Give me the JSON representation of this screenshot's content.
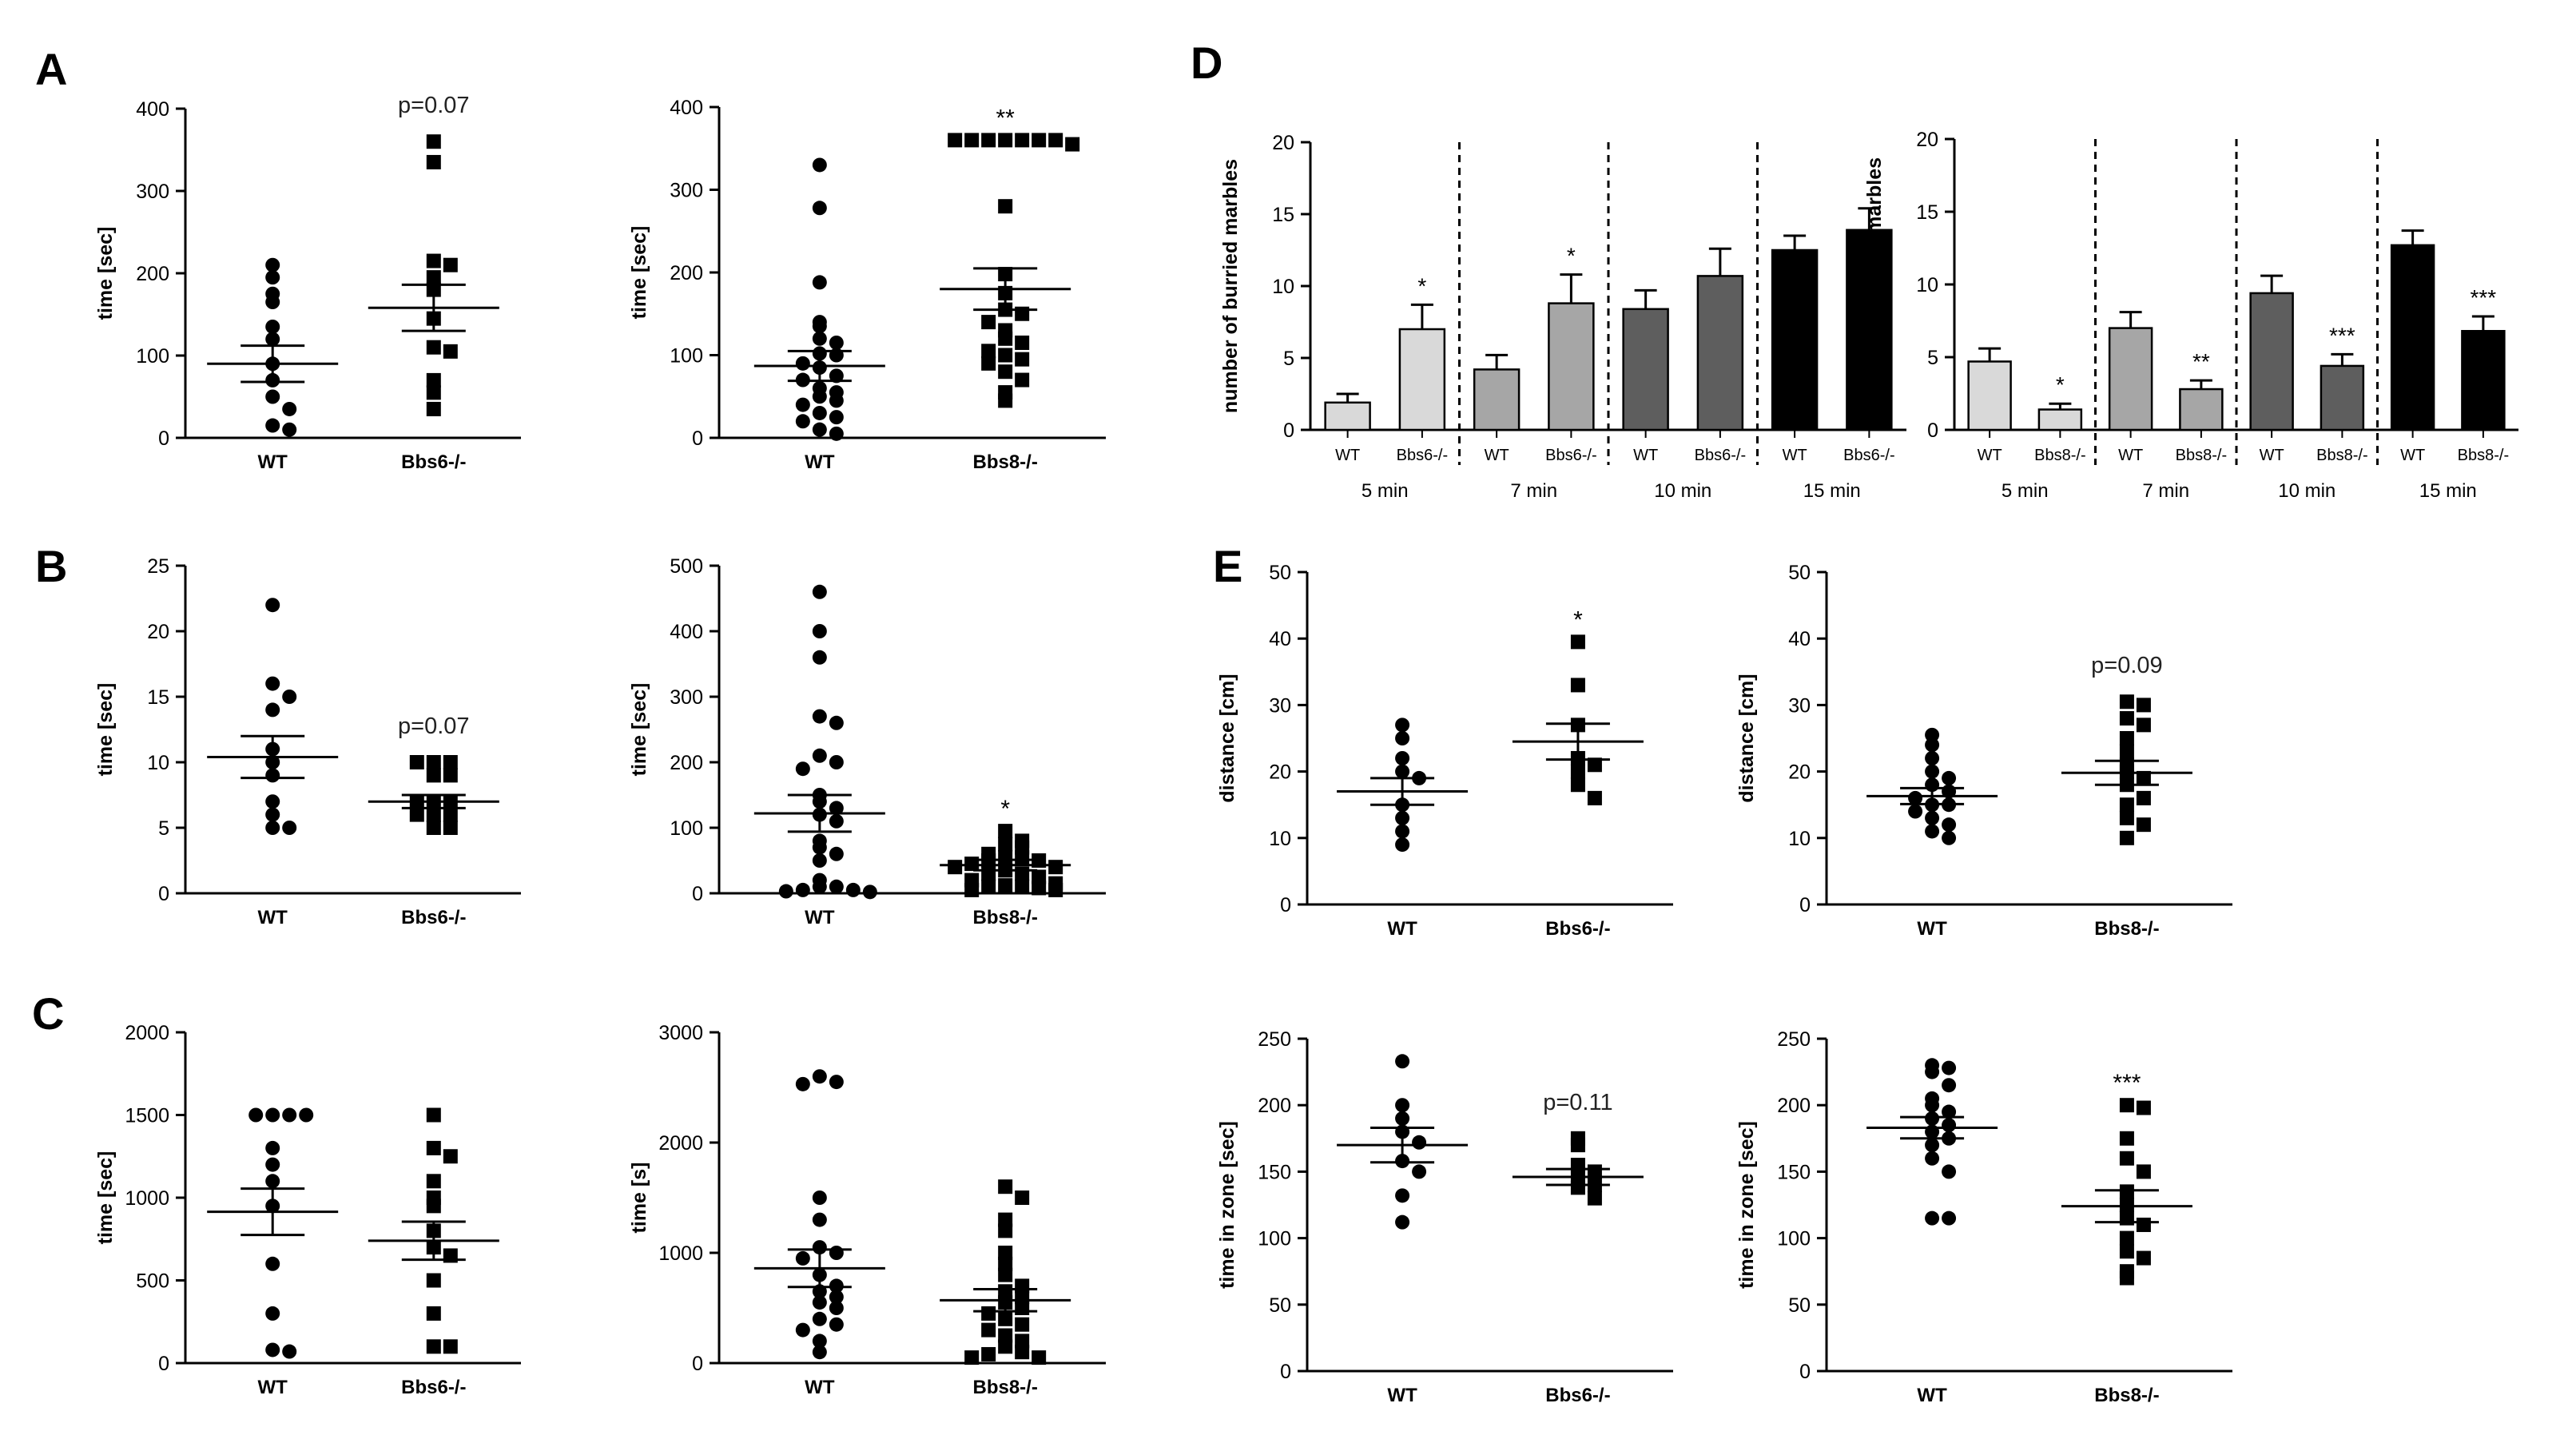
{
  "panel_letters": [
    "A",
    "B",
    "C",
    "D",
    "E"
  ],
  "chart_data": [
    {
      "id": "A1",
      "type": "scatter",
      "ylabel": "time [sec]",
      "ylim": [
        0,
        400
      ],
      "yticks": [
        0,
        100,
        200,
        300,
        400
      ],
      "categories": [
        "WT",
        "Bbs6-/-"
      ],
      "annotation": "p=0.07",
      "groups": [
        {
          "name": "WT",
          "marker": "circle",
          "mean": 90,
          "sem": 22,
          "values": [
            210,
            195,
            175,
            165,
            135,
            120,
            90,
            70,
            50,
            35,
            15,
            10
          ]
        },
        {
          "name": "Bbs6-/-",
          "marker": "square",
          "mean": 158,
          "sem": 28,
          "values": [
            360,
            335,
            215,
            210,
            195,
            180,
            145,
            110,
            105,
            70,
            55,
            35
          ]
        }
      ]
    },
    {
      "id": "A2",
      "type": "scatter",
      "ylabel": "time [sec]",
      "ylim": [
        0,
        400
      ],
      "yticks": [
        0,
        100,
        200,
        300,
        400
      ],
      "categories": [
        "WT",
        "Bbs8-/-"
      ],
      "annotation": "**",
      "groups": [
        {
          "name": "WT",
          "marker": "circle",
          "mean": 87,
          "sem": 18,
          "values": [
            330,
            278,
            188,
            140,
            135,
            120,
            115,
            102,
            100,
            90,
            85,
            75,
            70,
            60,
            55,
            50,
            45,
            40,
            30,
            25,
            20,
            10,
            5
          ]
        },
        {
          "name": "Bbs8-/-",
          "marker": "square",
          "mean": 180,
          "sem": 25,
          "values": [
            360,
            360,
            360,
            360,
            360,
            360,
            360,
            355,
            280,
            198,
            175,
            155,
            150,
            140,
            130,
            120,
            115,
            105,
            100,
            95,
            90,
            80,
            70,
            55,
            45
          ]
        }
      ]
    },
    {
      "id": "B1",
      "type": "scatter",
      "ylabel": "time [sec]",
      "ylim": [
        0,
        25
      ],
      "yticks": [
        0,
        5,
        10,
        15,
        20,
        25
      ],
      "categories": [
        "WT",
        "Bbs6-/-"
      ],
      "annotation": "p=0.07",
      "groups": [
        {
          "name": "WT",
          "marker": "circle",
          "mean": 10.4,
          "sem": 1.6,
          "values": [
            22,
            16,
            15,
            14,
            11,
            10,
            9,
            7,
            6,
            5,
            5
          ]
        },
        {
          "name": "Bbs6-/-",
          "marker": "square",
          "mean": 7,
          "sem": 0.5,
          "values": [
            10,
            10,
            10,
            9,
            9,
            7,
            7,
            7,
            6,
            6,
            6,
            5,
            5
          ]
        }
      ]
    },
    {
      "id": "B2",
      "type": "scatter",
      "ylabel": "time [sec]",
      "ylim": [
        0,
        500
      ],
      "yticks": [
        0,
        100,
        200,
        300,
        400,
        500
      ],
      "categories": [
        "WT",
        "Bbs8-/-"
      ],
      "annotation": "*",
      "groups": [
        {
          "name": "WT",
          "marker": "circle",
          "mean": 122,
          "sem": 28,
          "values": [
            460,
            400,
            360,
            270,
            260,
            210,
            200,
            190,
            150,
            140,
            130,
            120,
            110,
            80,
            70,
            60,
            50,
            20,
            10,
            10,
            5,
            5,
            3,
            2
          ]
        },
        {
          "name": "Bbs8-/-",
          "marker": "square",
          "mean": 43,
          "sem": 8,
          "values": [
            95,
            80,
            75,
            70,
            60,
            55,
            55,
            50,
            50,
            45,
            40,
            40,
            35,
            30,
            30,
            25,
            20,
            15,
            12,
            10,
            10,
            8,
            5,
            5
          ]
        }
      ]
    },
    {
      "id": "C1",
      "type": "scatter",
      "ylabel": "time [sec]",
      "ylim": [
        0,
        2000
      ],
      "yticks": [
        0,
        500,
        1000,
        1500,
        2000
      ],
      "categories": [
        "WT",
        "Bbs6-/-"
      ],
      "annotation": "",
      "groups": [
        {
          "name": "WT",
          "marker": "circle",
          "mean": 915,
          "sem": 140,
          "values": [
            1500,
            1500,
            1500,
            1500,
            1300,
            1200,
            1100,
            950,
            600,
            300,
            80,
            70
          ]
        },
        {
          "name": "Bbs6-/-",
          "marker": "square",
          "mean": 740,
          "sem": 115,
          "values": [
            1500,
            1300,
            1250,
            1100,
            1000,
            950,
            800,
            700,
            650,
            500,
            300,
            100,
            100
          ]
        }
      ]
    },
    {
      "id": "C2",
      "type": "scatter",
      "ylabel": "time [s]",
      "ylim": [
        0,
        3000
      ],
      "yticks": [
        0,
        1000,
        2000,
        3000
      ],
      "categories": [
        "WT",
        "Bbs8-/-"
      ],
      "annotation": "",
      "groups": [
        {
          "name": "WT",
          "marker": "circle",
          "mean": 860,
          "sem": 170,
          "values": [
            2600,
            2550,
            2530,
            1500,
            1300,
            1050,
            1000,
            950,
            800,
            700,
            650,
            600,
            550,
            500,
            400,
            350,
            300,
            200,
            100
          ]
        },
        {
          "name": "Bbs8-/-",
          "marker": "square",
          "mean": 570,
          "sem": 100,
          "values": [
            1600,
            1500,
            1300,
            1200,
            1000,
            900,
            800,
            700,
            650,
            600,
            550,
            500,
            450,
            400,
            350,
            300,
            250,
            200,
            150,
            100,
            80,
            50,
            50
          ]
        }
      ]
    },
    {
      "id": "D1",
      "type": "bar",
      "ylabel": "number of burried marbles",
      "ylim": [
        0,
        20
      ],
      "yticks": [
        0,
        5,
        10,
        15,
        20
      ],
      "categories": [
        "WT",
        "Bbs6-/-",
        "WT",
        "Bbs6-/-",
        "WT",
        "Bbs6-/-",
        "WT",
        "Bbs6-/-"
      ],
      "time_labels": [
        "5 min",
        "7 min",
        "10 min",
        "15 min"
      ],
      "values": [
        1.9,
        7.0,
        4.2,
        8.8,
        8.4,
        10.7,
        12.5,
        13.9
      ],
      "errors": [
        0.6,
        1.7,
        1.0,
        2.0,
        1.3,
        1.9,
        1.0,
        1.5
      ],
      "colors": [
        "#d9d9d9",
        "#d9d9d9",
        "#a6a6a6",
        "#a6a6a6",
        "#5e5e5e",
        "#5e5e5e",
        "#000000",
        "#000000"
      ],
      "stars": [
        "",
        "*",
        "",
        "*",
        "",
        "",
        "",
        ""
      ]
    },
    {
      "id": "D2",
      "type": "bar",
      "ylabel": "number of burried marbles",
      "ylim": [
        0,
        20
      ],
      "yticks": [
        0,
        5,
        10,
        15,
        20
      ],
      "categories": [
        "WT",
        "Bbs8-/-",
        "WT",
        "Bbs8-/-",
        "WT",
        "Bbs8-/-",
        "WT",
        "Bbs8-/-"
      ],
      "time_labels": [
        "5 min",
        "7 min",
        "10 min",
        "15 min"
      ],
      "values": [
        4.7,
        1.4,
        7.0,
        2.8,
        9.4,
        4.4,
        12.7,
        6.8
      ],
      "errors": [
        0.9,
        0.4,
        1.1,
        0.6,
        1.2,
        0.8,
        1.0,
        1.0
      ],
      "colors": [
        "#d9d9d9",
        "#d9d9d9",
        "#a6a6a6",
        "#a6a6a6",
        "#5e5e5e",
        "#5e5e5e",
        "#000000",
        "#000000"
      ],
      "stars": [
        "",
        "*",
        "",
        "**",
        "",
        "***",
        "",
        "***"
      ]
    },
    {
      "id": "E1",
      "type": "scatter",
      "ylabel": "distance [cm]",
      "ylim": [
        0,
        50
      ],
      "yticks": [
        0,
        10,
        20,
        30,
        40,
        50
      ],
      "categories": [
        "WT",
        "Bbs6-/-"
      ],
      "annotation": "*",
      "groups": [
        {
          "name": "WT",
          "marker": "circle",
          "mean": 17,
          "sem": 2,
          "values": [
            27,
            25,
            22,
            20,
            19,
            15,
            13,
            11,
            9
          ]
        },
        {
          "name": "Bbs6-/-",
          "marker": "square",
          "mean": 24.5,
          "sem": 2.7,
          "values": [
            39.5,
            33,
            27,
            22,
            21,
            20,
            18,
            16
          ]
        }
      ]
    },
    {
      "id": "E2",
      "type": "scatter",
      "ylabel": "distance [cm]",
      "ylim": [
        0,
        50
      ],
      "yticks": [
        0,
        10,
        20,
        30,
        40,
        50
      ],
      "categories": [
        "WT",
        "Bbs8-/-"
      ],
      "annotation": "p=0.09",
      "groups": [
        {
          "name": "WT",
          "marker": "circle",
          "mean": 16.3,
          "sem": 1.2,
          "values": [
            25.5,
            24,
            22,
            20,
            19,
            18,
            17,
            16,
            15,
            15,
            14,
            13,
            12,
            11,
            10
          ]
        },
        {
          "name": "Bbs8-/-",
          "marker": "square",
          "mean": 19.8,
          "sem": 1.8,
          "values": [
            30.5,
            30,
            28,
            27,
            25,
            23,
            21,
            20,
            19,
            18,
            16,
            15,
            13,
            12,
            10
          ]
        }
      ]
    },
    {
      "id": "E3",
      "type": "scatter",
      "ylabel": "time in zone [sec]",
      "ylim": [
        0,
        250
      ],
      "yticks": [
        0,
        50,
        100,
        150,
        200,
        250
      ],
      "categories": [
        "WT",
        "Bbs6-/-"
      ],
      "annotation": "p=0.11",
      "groups": [
        {
          "name": "WT",
          "marker": "circle",
          "mean": 170,
          "sem": 13,
          "values": [
            233,
            200,
            190,
            180,
            172,
            158,
            150,
            132,
            112
          ]
        },
        {
          "name": "Bbs6-/-",
          "marker": "square",
          "mean": 146,
          "sem": 6,
          "values": [
            175,
            170,
            155,
            150,
            145,
            140,
            138,
            130
          ]
        }
      ]
    },
    {
      "id": "E4",
      "type": "scatter",
      "ylabel": "time in zone [sec]",
      "ylim": [
        0,
        250
      ],
      "yticks": [
        0,
        50,
        100,
        150,
        200,
        250
      ],
      "categories": [
        "WT",
        "Bbs8-/-"
      ],
      "annotation": "***",
      "groups": [
        {
          "name": "WT",
          "marker": "circle",
          "mean": 183,
          "sem": 8,
          "values": [
            230,
            228,
            225,
            215,
            205,
            200,
            195,
            190,
            185,
            180,
            175,
            170,
            160,
            150,
            115,
            115
          ]
        },
        {
          "name": "Bbs8-/-",
          "marker": "square",
          "mean": 124,
          "sem": 12,
          "values": [
            200,
            198,
            175,
            160,
            150,
            135,
            125,
            115,
            110,
            100,
            90,
            85,
            75,
            70
          ]
        }
      ]
    }
  ]
}
